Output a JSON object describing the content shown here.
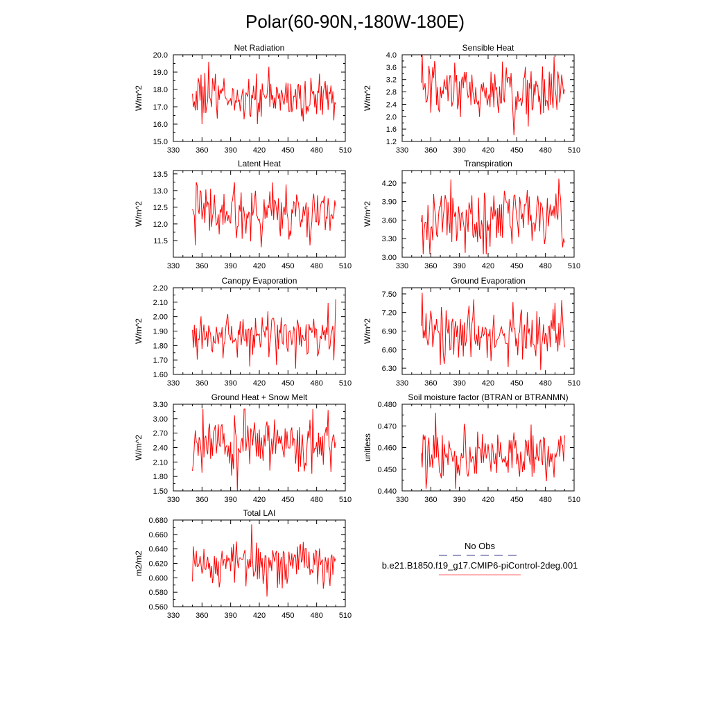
{
  "figure": {
    "title": "Polar(60-90N,-180W-180E)",
    "legend": {
      "entries": [
        {
          "label": "No Obs",
          "color": "#3b3b8f",
          "style": "dashed"
        },
        {
          "label": "b.e21.B1850.f19_g17.CMIP6-piControl-2deg.001",
          "color": "#ff6666",
          "style": "solid"
        }
      ]
    },
    "series_color": "#ff0000"
  },
  "chart_data": [
    {
      "type": "line",
      "title": "Net Radiation",
      "xlabel": "",
      "ylabel": "W/m^2",
      "xlim": [
        330,
        510
      ],
      "xticks": [
        330,
        360,
        390,
        420,
        450,
        480,
        510
      ],
      "ylim": [
        15.0,
        20.0
      ],
      "yticks": [
        "15.0",
        "16.0",
        "17.0",
        "18.0",
        "19.0",
        "20.0"
      ],
      "x_start": 350,
      "x_end": 500,
      "summary": {
        "base": 17.5,
        "amp": 0.7,
        "min": 16.0,
        "max": 19.6
      },
      "series": [
        {
          "name": "b.e21.B1850.f19_g17.CMIP6-piControl-2deg.001",
          "values": []
        }
      ]
    },
    {
      "type": "line",
      "title": "Sensible Heat",
      "xlabel": "",
      "ylabel": "W/m^2",
      "xlim": [
        330,
        510
      ],
      "xticks": [
        330,
        360,
        390,
        420,
        450,
        480,
        510
      ],
      "ylim": [
        1.2,
        4.0
      ],
      "yticks": [
        "1.2",
        "1.6",
        "2.0",
        "2.4",
        "2.8",
        "3.2",
        "3.6",
        "4.0"
      ],
      "x_start": 350,
      "x_end": 500,
      "summary": {
        "base": 2.75,
        "amp": 0.45,
        "min": 1.4,
        "max": 4.0
      },
      "series": [
        {
          "name": "b.e21.B1850.f19_g17.CMIP6-piControl-2deg.001",
          "values": []
        }
      ]
    },
    {
      "type": "line",
      "title": "Latent Heat",
      "xlabel": "",
      "ylabel": "W/m^2",
      "xlim": [
        330,
        510
      ],
      "xticks": [
        330,
        360,
        390,
        420,
        450,
        480,
        510
      ],
      "ylim": [
        11.0,
        13.6
      ],
      "yticks": [
        "11.5",
        "12.0",
        "12.5",
        "13.0",
        "13.5"
      ],
      "x_start": 350,
      "x_end": 500,
      "summary": {
        "base": 12.35,
        "amp": 0.4,
        "min": 11.3,
        "max": 13.25
      },
      "series": [
        {
          "name": "b.e21.B1850.f19_g17.CMIP6-piControl-2deg.001",
          "values": []
        }
      ]
    },
    {
      "type": "line",
      "title": "Transpiration",
      "xlabel": "",
      "ylabel": "W/m^2",
      "xlim": [
        330,
        510
      ],
      "xticks": [
        330,
        360,
        390,
        420,
        450,
        480,
        510
      ],
      "ylim": [
        3.0,
        4.4
      ],
      "yticks": [
        "3.00",
        "3.30",
        "3.60",
        "3.90",
        "4.20"
      ],
      "x_start": 350,
      "x_end": 500,
      "summary": {
        "base": 3.6,
        "amp": 0.25,
        "min": 3.05,
        "max": 4.27
      },
      "series": [
        {
          "name": "b.e21.B1850.f19_g17.CMIP6-piControl-2deg.001",
          "values": []
        }
      ]
    },
    {
      "type": "line",
      "title": "Canopy Evaporation",
      "xlabel": "",
      "ylabel": "W/m^2",
      "xlim": [
        330,
        510
      ],
      "xticks": [
        330,
        360,
        390,
        420,
        450,
        480,
        510
      ],
      "ylim": [
        1.6,
        2.2
      ],
      "yticks": [
        "1.60",
        "1.70",
        "1.80",
        "1.90",
        "2.00",
        "2.10",
        "2.20"
      ],
      "x_start": 350,
      "x_end": 500,
      "summary": {
        "base": 1.87,
        "amp": 0.09,
        "min": 1.64,
        "max": 2.12
      },
      "series": [
        {
          "name": "b.e21.B1850.f19_g17.CMIP6-piControl-2deg.001",
          "values": []
        }
      ]
    },
    {
      "type": "line",
      "title": "Ground Evaporation",
      "xlabel": "",
      "ylabel": "W/m^2",
      "xlim": [
        330,
        510
      ],
      "xticks": [
        330,
        360,
        390,
        420,
        450,
        480,
        510
      ],
      "ylim": [
        6.2,
        7.6
      ],
      "yticks": [
        "6.30",
        "6.60",
        "6.90",
        "7.20",
        "7.50"
      ],
      "x_start": 350,
      "x_end": 500,
      "summary": {
        "base": 6.85,
        "amp": 0.22,
        "min": 6.27,
        "max": 7.52
      },
      "series": [
        {
          "name": "b.e21.B1850.f19_g17.CMIP6-piControl-2deg.001",
          "values": []
        }
      ]
    },
    {
      "type": "line",
      "title": "Ground Heat + Snow Melt",
      "xlabel": "",
      "ylabel": "W/m^2",
      "xlim": [
        330,
        510
      ],
      "xticks": [
        330,
        360,
        390,
        420,
        450,
        480,
        510
      ],
      "ylim": [
        1.5,
        3.3
      ],
      "yticks": [
        "1.50",
        "1.80",
        "2.10",
        "2.40",
        "2.70",
        "3.00",
        "3.30"
      ],
      "x_start": 350,
      "x_end": 500,
      "summary": {
        "base": 2.5,
        "amp": 0.3,
        "min": 1.5,
        "max": 3.2
      },
      "series": [
        {
          "name": "b.e21.B1850.f19_g17.CMIP6-piControl-2deg.001",
          "values": []
        }
      ]
    },
    {
      "type": "line",
      "title": "Soil moisture factor (BTRAN or BTRANMN)",
      "xlabel": "",
      "ylabel": "unitless",
      "xlim": [
        330,
        510
      ],
      "xticks": [
        330,
        360,
        390,
        420,
        450,
        480,
        510
      ],
      "ylim": [
        0.44,
        0.48
      ],
      "yticks": [
        "0.440",
        "0.450",
        "0.460",
        "0.470",
        "0.480"
      ],
      "x_start": 350,
      "x_end": 500,
      "summary": {
        "base": 0.456,
        "amp": 0.006,
        "min": 0.441,
        "max": 0.476
      },
      "series": [
        {
          "name": "b.e21.B1850.f19_g17.CMIP6-piControl-2deg.001",
          "values": []
        }
      ]
    },
    {
      "type": "line",
      "title": "Total LAI",
      "xlabel": "",
      "ylabel": "m2/m2",
      "xlim": [
        330,
        510
      ],
      "xticks": [
        330,
        360,
        390,
        420,
        450,
        480,
        510
      ],
      "ylim": [
        0.56,
        0.68
      ],
      "yticks": [
        "0.560",
        "0.580",
        "0.600",
        "0.620",
        "0.640",
        "0.660",
        "0.680"
      ],
      "x_start": 350,
      "x_end": 500,
      "summary": {
        "base": 0.62,
        "amp": 0.017,
        "min": 0.574,
        "max": 0.674
      },
      "series": [
        {
          "name": "b.e21.B1850.f19_g17.CMIP6-piControl-2deg.001",
          "values": []
        }
      ]
    }
  ]
}
